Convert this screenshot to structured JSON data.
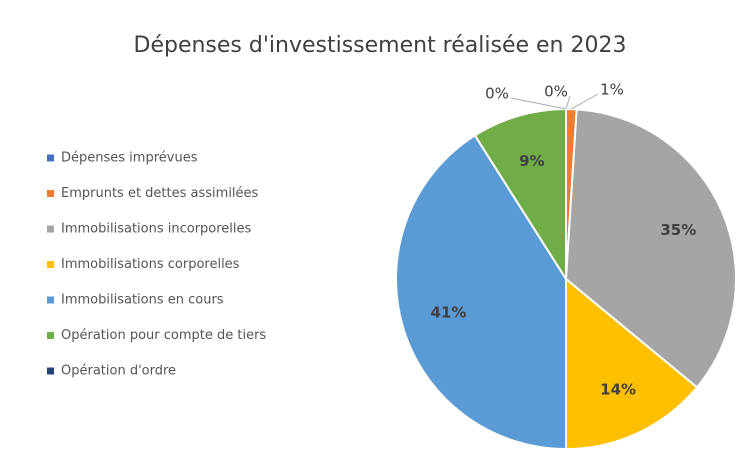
{
  "chart_data": {
    "type": "pie",
    "title": "Dépenses d'investissement réalisée en 2023",
    "categories": [
      "Dépenses imprévues",
      "Emprunts et dettes assimilées",
      "Immobilisations incorporelles",
      "Immobilisations corporelles",
      "Immobilisations en cours",
      "Opération pour compte de tiers",
      "Opération d'ordre"
    ],
    "values": [
      0,
      1,
      35,
      14,
      41,
      9,
      0
    ],
    "value_labels": [
      "0%",
      "1%",
      "35%",
      "14%",
      "41%",
      "9%",
      "0%"
    ],
    "colors": [
      "#4472c4",
      "#ed7d31",
      "#a5a5a5",
      "#ffc000",
      "#5b9bd5",
      "#70ad47",
      "#264478"
    ],
    "legend": "left"
  }
}
